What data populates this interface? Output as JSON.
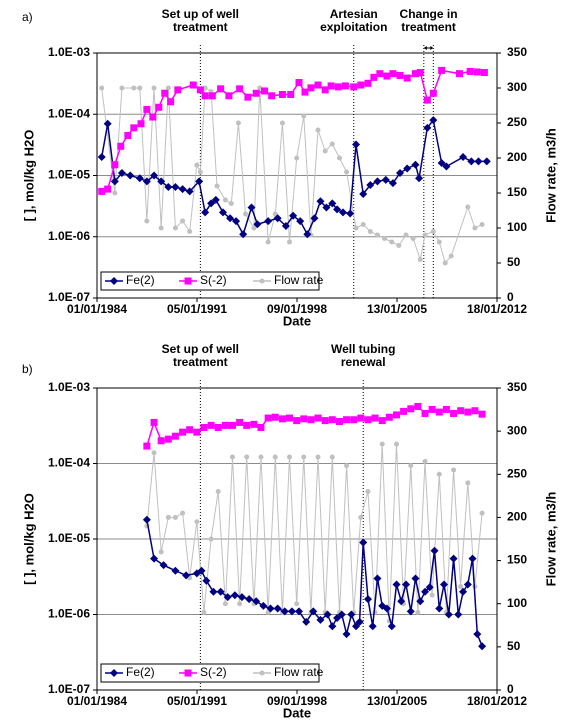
{
  "chart_data": [
    {
      "type": "line",
      "panel_label": "a)",
      "xlabel": "Date",
      "ylabel": "[ ], mol/kg H2O",
      "y2label": "Flow rate, m3/h",
      "xlim": [
        "1984-01-01",
        "2012-01-18"
      ],
      "xticks": [
        {
          "value": "1984-01-01",
          "label": "01/01/1984"
        },
        {
          "value": "1991-01-05",
          "label": "05/01/1991"
        },
        {
          "value": "1998-01-09",
          "label": "09/01/1998"
        },
        {
          "value": "2005-01-13",
          "label": "13/01/2005"
        },
        {
          "value": "2012-01-18",
          "label": "18/01/2012"
        }
      ],
      "ylog": true,
      "ylim": [
        1e-07,
        0.001
      ],
      "yticks": [
        {
          "value": 1e-07,
          "label": "1.0E-07"
        },
        {
          "value": 1e-06,
          "label": "1.0E-06"
        },
        {
          "value": 1e-05,
          "label": "1.0E-05"
        },
        {
          "value": 0.0001,
          "label": "1.0E-04"
        },
        {
          "value": 0.001,
          "label": "1.0E-03"
        }
      ],
      "y2lim": [
        0,
        350
      ],
      "y2ticks": [
        0,
        50,
        100,
        150,
        200,
        250,
        300,
        350
      ],
      "grid": true,
      "legend": "lower left",
      "annotations": [
        {
          "text": [
            "Set up of well",
            "treatment"
          ],
          "dates": [
            "1991-04"
          ]
        },
        {
          "text": [
            "Artesian",
            "exploitation"
          ],
          "dates": [
            "2002-01"
          ]
        },
        {
          "text": [
            "Change in",
            "treatment"
          ],
          "dates": [
            "2006-12",
            "2007-08"
          ]
        }
      ],
      "series": [
        {
          "name": "Fe(2)",
          "color": "#000080",
          "marker": "diamond",
          "x": [
            "1984-05",
            "1984-10",
            "1985-04",
            "1985-10",
            "1986-05",
            "1987-01",
            "1987-07",
            "1988-01",
            "1988-07",
            "1989-01",
            "1989-07",
            "1990-01",
            "1990-07",
            "1991-03",
            "1991-08",
            "1992-01",
            "1992-05",
            "1992-11",
            "1993-05",
            "1993-10",
            "1994-04",
            "1994-11",
            "1995-04",
            "1996-01",
            "1996-09",
            "1997-04",
            "1997-10",
            "1998-04",
            "1998-10",
            "1999-04",
            "1999-09",
            "2000-02",
            "2000-07",
            "2000-11",
            "2001-04",
            "2001-10",
            "2002-03",
            "2002-09",
            "2003-03",
            "2003-09",
            "2004-04",
            "2004-10",
            "2005-04",
            "2005-10",
            "2006-05",
            "2006-08",
            "2007-03",
            "2007-08",
            "2008-03",
            "2008-07",
            "2009-09",
            "2010-04",
            "2010-10",
            "2011-05"
          ],
          "values": [
            2e-05,
            7e-05,
            8e-06,
            1.1e-05,
            1e-05,
            9e-06,
            8e-06,
            1e-05,
            8e-06,
            6.5e-06,
            6.5e-06,
            6e-06,
            5.5e-06,
            8e-06,
            2.5e-06,
            3.5e-06,
            4e-06,
            2.5e-06,
            2e-06,
            1.8e-06,
            1.1e-06,
            3e-06,
            1.6e-06,
            1.8e-06,
            2e-06,
            1.5e-06,
            2.2e-06,
            1.8e-06,
            1.1e-06,
            2e-06,
            3.8e-06,
            3e-06,
            3.5e-06,
            2.8e-06,
            2.5e-06,
            2.4e-06,
            3.2e-05,
            5e-06,
            7e-06,
            8e-06,
            8.5e-06,
            7.5e-06,
            1.1e-05,
            1.3e-05,
            1.5e-05,
            9e-06,
            6e-05,
            8e-05,
            1.6e-05,
            1.4e-05,
            2e-05,
            1.7e-05,
            1.7e-05,
            1.7e-05
          ]
        },
        {
          "name": "S(-2)",
          "color": "#ff00ff",
          "marker": "square",
          "x": [
            "1984-05",
            "1984-10",
            "1985-04",
            "1985-09",
            "1986-03",
            "1986-08",
            "1987-02",
            "1987-07",
            "1987-12",
            "1988-05",
            "1988-10",
            "1989-03",
            "1989-09",
            "1990-10",
            "1991-04",
            "1991-08",
            "1992-02",
            "1992-09",
            "1993-04",
            "1994-01",
            "1994-08",
            "1995-03",
            "1995-10",
            "1996-04",
            "1997-01",
            "1997-08",
            "1998-03",
            "1998-08",
            "1999-01",
            "1999-07",
            "2000-01",
            "2000-06",
            "2000-12",
            "2001-06",
            "2002-01",
            "2002-07",
            "2003-01",
            "2003-06",
            "2003-11",
            "2004-05",
            "2004-10",
            "2005-04",
            "2005-10",
            "2006-05",
            "2006-09",
            "2007-03",
            "2007-08",
            "2008-03",
            "2009-06",
            "2010-03",
            "2010-09",
            "2011-03"
          ],
          "values": [
            5.5e-06,
            6e-06,
            1.5e-05,
            3e-05,
            4.5e-05,
            6e-05,
            7e-05,
            0.00012,
            9e-05,
            0.00013,
            0.00022,
            0.00016,
            0.00025,
            0.0003,
            0.00025,
            0.0002,
            0.0002,
            0.00026,
            0.0002,
            0.00026,
            0.00019,
            0.00022,
            0.00024,
            0.0002,
            0.00021,
            0.00021,
            0.00033,
            0.00023,
            0.00027,
            0.0003,
            0.00025,
            0.00029,
            0.00028,
            0.00029,
            0.00028,
            0.0003,
            0.00032,
            0.0004,
            0.00046,
            0.00042,
            0.00046,
            0.00043,
            0.00039,
            0.00046,
            0.00048,
            0.00017,
            0.00022,
            0.00052,
            0.00046,
            0.0005,
            0.00049,
            0.00048
          ]
        },
        {
          "name": "Flow rate",
          "color": "#c0c0c0",
          "marker": "circle",
          "axis": "y2",
          "x": [
            "1984-05",
            "1985-04",
            "1985-10",
            "1986-08",
            "1987-01",
            "1987-07",
            "1988-01",
            "1988-07",
            "1989-01",
            "1989-07",
            "1990-01",
            "1990-07",
            "1991-01",
            "1991-04",
            "1991-08",
            "1992-01",
            "1992-06",
            "1993-01",
            "1993-06",
            "1993-12",
            "1994-06",
            "1995-01",
            "1995-06",
            "1996-01",
            "1996-07",
            "1997-01",
            "1997-07",
            "1998-01",
            "1998-07",
            "1999-01",
            "1999-07",
            "2000-01",
            "2000-07",
            "2001-01",
            "2001-07",
            "2002-03",
            "2002-09",
            "2003-03",
            "2003-09",
            "2004-03",
            "2004-09",
            "2005-03",
            "2005-09",
            "2006-03",
            "2006-09",
            "2007-01",
            "2007-08",
            "2008-01",
            "2008-06",
            "2008-11",
            "2010-01",
            "2010-07",
            "2011-01"
          ],
          "values": [
            300,
            150,
            300,
            300,
            300,
            110,
            300,
            100,
            300,
            100,
            110,
            95,
            190,
            180,
            300,
            295,
            160,
            140,
            135,
            250,
            120,
            100,
            300,
            80,
            120,
            250,
            80,
            200,
            260,
            90,
            240,
            210,
            220,
            200,
            180,
            100,
            105,
            95,
            90,
            85,
            80,
            75,
            90,
            85,
            55,
            90,
            95,
            80,
            50,
            60,
            130,
            100,
            105
          ]
        }
      ]
    },
    {
      "type": "line",
      "panel_label": "b)",
      "xlabel": "Date",
      "ylabel": "[ ], mol/kg H2O",
      "y2label": "Flow rate, m3/h",
      "xlim": [
        "1984-01-01",
        "2012-01-18"
      ],
      "xticks": [
        {
          "value": "1984-01-01",
          "label": "01/01/1984"
        },
        {
          "value": "1991-01-05",
          "label": "05/01/1991"
        },
        {
          "value": "1998-01-09",
          "label": "09/01/1998"
        },
        {
          "value": "2005-01-13",
          "label": "13/01/2005"
        },
        {
          "value": "2012-01-18",
          "label": "18/01/2012"
        }
      ],
      "ylog": true,
      "ylim": [
        1e-07,
        0.001
      ],
      "yticks": [
        {
          "value": 1e-07,
          "label": "1.0E-07"
        },
        {
          "value": 1e-06,
          "label": "1.0E-06"
        },
        {
          "value": 1e-05,
          "label": "1.0E-05"
        },
        {
          "value": 0.0001,
          "label": "1.0E-04"
        },
        {
          "value": 0.001,
          "label": "1.0E-03"
        }
      ],
      "y2lim": [
        0,
        350
      ],
      "y2ticks": [
        0,
        50,
        100,
        150,
        200,
        250,
        300,
        350
      ],
      "grid": true,
      "legend": "lower left",
      "annotations": [
        {
          "text": [
            "Set up of well",
            "treatment"
          ],
          "dates": [
            "1991-04"
          ]
        },
        {
          "text": [
            "Well tubing",
            "renewal"
          ],
          "dates": [
            "2002-09"
          ]
        }
      ],
      "series": [
        {
          "name": "Fe(2)",
          "color": "#000080",
          "marker": "diamond",
          "x": [
            "1987-07",
            "1988-01",
            "1988-09",
            "1989-07",
            "1990-04",
            "1991-01",
            "1991-05",
            "1991-09",
            "1992-03",
            "1992-09",
            "1993-03",
            "1993-09",
            "1994-03",
            "1994-09",
            "1995-03",
            "1995-09",
            "1996-03",
            "1996-09",
            "1997-03",
            "1997-09",
            "1998-03",
            "1998-09",
            "1999-03",
            "1999-09",
            "2000-03",
            "2000-07",
            "2000-11",
            "2001-03",
            "2001-07",
            "2001-11",
            "2002-03",
            "2002-06",
            "2002-09",
            "2003-01",
            "2003-05",
            "2003-09",
            "2004-01",
            "2004-05",
            "2004-09",
            "2005-01",
            "2005-05",
            "2005-09",
            "2006-01",
            "2006-05",
            "2006-09",
            "2007-01",
            "2007-05",
            "2007-09",
            "2008-01",
            "2008-05",
            "2008-09",
            "2009-01",
            "2009-05",
            "2009-09",
            "2010-01",
            "2010-05",
            "2010-09",
            "2011-01"
          ],
          "values": [
            1.8e-05,
            5.5e-06,
            4.5e-06,
            3.8e-06,
            3.3e-06,
            3.5e-06,
            3.8e-06,
            2.8e-06,
            2e-06,
            2e-06,
            1.7e-06,
            1.8e-06,
            1.7e-06,
            1.6e-06,
            1.5e-06,
            1.3e-06,
            1.2e-06,
            1.2e-06,
            1.1e-06,
            1.1e-06,
            1.1e-06,
            8e-07,
            1.1e-06,
            8.5e-07,
            1e-06,
            7e-07,
            9e-07,
            1e-06,
            5.5e-07,
            1e-06,
            7e-07,
            8e-07,
            9e-06,
            1.6e-06,
            7e-07,
            3e-06,
            1.3e-06,
            1.2e-06,
            7e-07,
            2.5e-06,
            1.5e-06,
            2.5e-06,
            1.1e-06,
            3e-06,
            1.5e-06,
            2e-06,
            2.3e-06,
            7e-06,
            1.2e-06,
            2.5e-06,
            1e-06,
            5.5e-06,
            1e-06,
            2e-06,
            2.5e-06,
            5.5e-06,
            5.5e-07,
            3.8e-07
          ]
        },
        {
          "name": "S(-2)",
          "color": "#ff00ff",
          "marker": "square",
          "x": [
            "1987-07",
            "1988-01",
            "1988-07",
            "1989-01",
            "1989-07",
            "1990-01",
            "1990-07",
            "1991-01",
            "1991-07",
            "1992-01",
            "1992-07",
            "1993-01",
            "1993-07",
            "1994-01",
            "1994-07",
            "1995-01",
            "1995-07",
            "1996-01",
            "1996-07",
            "1997-01",
            "1997-07",
            "1998-01",
            "1998-07",
            "1999-01",
            "1999-07",
            "2000-01",
            "2000-07",
            "2001-01",
            "2001-07",
            "2002-01",
            "2002-07",
            "2003-01",
            "2003-07",
            "2004-01",
            "2004-07",
            "2005-01",
            "2005-07",
            "2006-01",
            "2006-07",
            "2007-01",
            "2007-07",
            "2008-01",
            "2008-07",
            "2009-01",
            "2009-07",
            "2010-01",
            "2010-07",
            "2011-01"
          ],
          "values": [
            0.00017,
            0.00035,
            0.0002,
            0.00021,
            0.00023,
            0.00026,
            0.00028,
            0.00026,
            0.0003,
            0.00032,
            0.0003,
            0.00032,
            0.00032,
            0.00035,
            0.00032,
            0.00033,
            0.0003,
            0.0004,
            0.00041,
            0.00039,
            0.0004,
            0.00037,
            0.00039,
            0.00038,
            0.0004,
            0.00037,
            0.00038,
            0.00036,
            0.00038,
            0.00038,
            0.0004,
            0.00038,
            0.0004,
            0.00037,
            0.00041,
            0.00044,
            0.00049,
            0.00053,
            0.00057,
            0.00046,
            0.00052,
            0.00048,
            0.00052,
            0.00046,
            0.0005,
            0.00048,
            0.0005,
            0.00045
          ]
        },
        {
          "name": "Flow rate",
          "color": "#c0c0c0",
          "marker": "circle",
          "axis": "y2",
          "x": [
            "1987-07",
            "1988-01",
            "1988-07",
            "1989-01",
            "1989-07",
            "1990-01",
            "1990-07",
            "1991-01",
            "1991-07",
            "1992-01",
            "1992-07",
            "1993-01",
            "1993-07",
            "1994-01",
            "1994-07",
            "1995-01",
            "1995-07",
            "1996-01",
            "1996-07",
            "1997-01",
            "1997-07",
            "1998-01",
            "1998-07",
            "1999-01",
            "1999-07",
            "2000-01",
            "2000-07",
            "2001-01",
            "2001-07",
            "2002-01",
            "2002-07",
            "2003-01",
            "2003-07",
            "2004-01",
            "2004-07",
            "2005-01",
            "2005-07",
            "2006-01",
            "2006-07",
            "2007-01",
            "2007-07",
            "2008-01",
            "2008-07",
            "2009-01",
            "2009-07",
            "2010-01",
            "2010-07",
            "2011-01"
          ],
          "values": [
            190,
            275,
            160,
            200,
            200,
            205,
            130,
            195,
            90,
            175,
            230,
            100,
            270,
            100,
            270,
            100,
            270,
            90,
            270,
            90,
            270,
            100,
            270,
            90,
            270,
            90,
            270,
            90,
            260,
            90,
            200,
            230,
            90,
            285,
            80,
            285,
            100,
            260,
            90,
            265,
            110,
            250,
            90,
            255,
            120,
            240,
            120,
            205
          ]
        }
      ]
    }
  ]
}
